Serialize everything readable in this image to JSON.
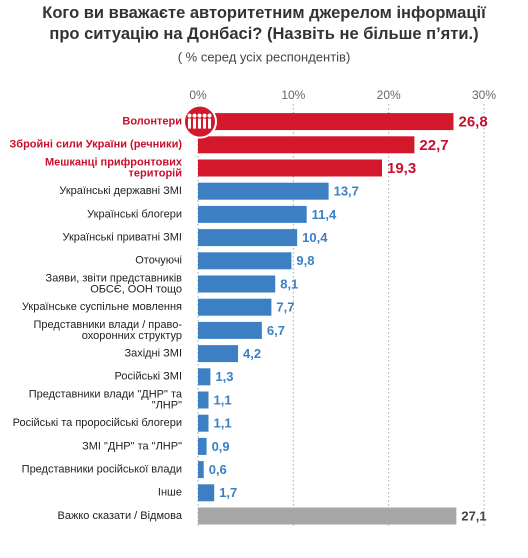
{
  "chart_data": {
    "type": "barh",
    "title": "Кого ви вважаєте авторитетним джерелом інформації\nпро ситуацію на Донбасі? (Назвіть не більше п’яти.)",
    "subtitle": "( % серед усіх респондентів)",
    "categories": [
      "Волонтери",
      "Збройні сили України (речники)",
      "Мешканці прифронтових\nтериторій",
      "Українські державні ЗМІ",
      "Українські блогери",
      "Українські приватні ЗМІ",
      "Оточуючі",
      "Заяви, звіти представників\nОБСЄ, ООН тощо",
      "Українське суспільне мовлення",
      "Представники влади / право-\nохоронних структур",
      "Західні ЗМІ",
      "Російські ЗМІ",
      "Представники влади \"ДНР\" та\n\"ЛНР\"",
      "Російські та проросійські блогери",
      "ЗМІ \"ДНР\" та \"ЛНР\"",
      "Представники російської влади",
      "Інше",
      "Важко сказати / Відмова"
    ],
    "values": [
      26.8,
      22.7,
      19.3,
      13.7,
      11.4,
      10.4,
      9.8,
      8.1,
      7.7,
      6.7,
      4.2,
      1.3,
      1.1,
      1.1,
      0.9,
      0.6,
      1.7,
      27.1
    ],
    "value_labels": [
      "26,8",
      "22,7",
      "19,3",
      "13,7",
      "11,4",
      "10,4",
      "9,8",
      "8,1",
      "7,7",
      "6,7",
      "4,2",
      "1,3",
      "1,1",
      "1,1",
      "0,9",
      "0,6",
      "1,7",
      "27,1"
    ],
    "colors": [
      "#d3182b",
      "#d3182b",
      "#d3182b",
      "#3c80c3",
      "#3c80c3",
      "#3c80c3",
      "#3c80c3",
      "#3c80c3",
      "#3c80c3",
      "#3c80c3",
      "#3c80c3",
      "#3c80c3",
      "#3c80c3",
      "#3c80c3",
      "#3c80c3",
      "#3c80c3",
      "#3c80c3",
      "#a6a6a6"
    ],
    "xlim": [
      0,
      30
    ],
    "xticks": [
      {
        "value": 0,
        "label": "0%"
      },
      {
        "value": 10,
        "label": "10%"
      },
      {
        "value": 20,
        "label": "20%"
      },
      {
        "value": 30,
        "label": "30%"
      }
    ],
    "grid": true
  }
}
